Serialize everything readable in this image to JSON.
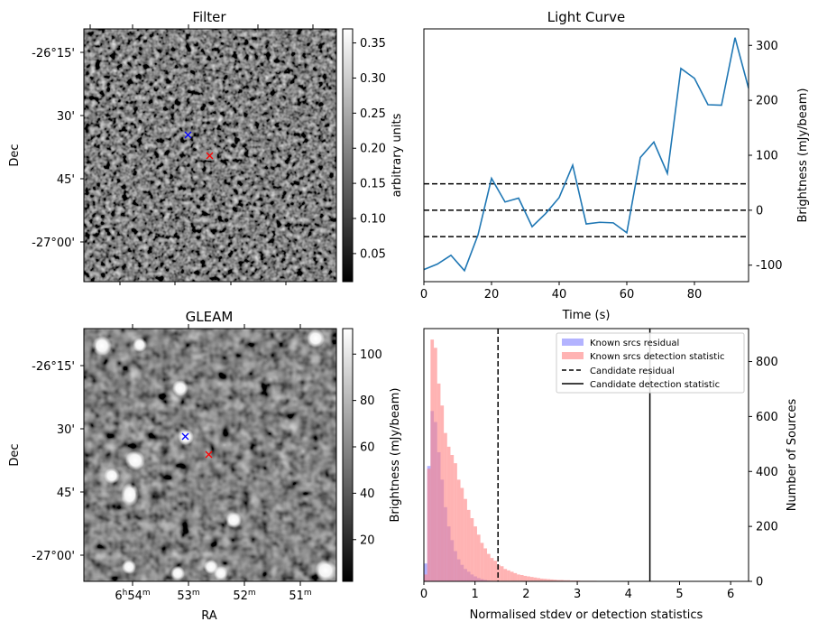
{
  "figure": {
    "filter_panel": {
      "title": "Filter",
      "ylabel": "Dec",
      "yticks": [
        "-26°15'",
        "30'",
        "45'",
        "-27°00'"
      ],
      "colorbar": {
        "label": "arbitrary units",
        "ticks": [
          "0.35",
          "0.30",
          "0.25",
          "0.20",
          "0.15",
          "0.10",
          "0.05"
        ],
        "range": [
          0.01,
          0.37
        ]
      },
      "markers": {
        "blue": "x",
        "red": "x"
      }
    },
    "gleam_panel": {
      "title": "GLEAM",
      "ylabel": "Dec",
      "xlabel": "RA",
      "yticks": [
        "-26°15'",
        "30'",
        "45'",
        "-27°00'"
      ],
      "xticks": [
        {
          "base": "6",
          "h": "h",
          "base2": "54",
          "m": "m"
        },
        {
          "base": "",
          "h": "",
          "base2": "53",
          "m": "m"
        },
        {
          "base": "",
          "h": "",
          "base2": "52",
          "m": "m"
        },
        {
          "base": "",
          "h": "",
          "base2": "51",
          "m": "m"
        }
      ],
      "colorbar": {
        "label": "Brightness (mJy/beam)",
        "ticks": [
          "100",
          "80",
          "60",
          "40",
          "20"
        ],
        "range": [
          2,
          111
        ]
      }
    },
    "colors": {
      "line": "#1f77b4",
      "blue_marker": "#0000ff",
      "red_marker": "#ff0000",
      "known_residual": "#8080ff",
      "known_detection": "#ff8080"
    }
  },
  "chart_data": [
    {
      "type": "line",
      "title": "Light Curve",
      "xlabel": "Time (s)",
      "ylabel": "Brightness (mJy/beam)",
      "xlim": [
        0,
        96
      ],
      "ylim": [
        -130,
        330
      ],
      "xticks": [
        0,
        20,
        40,
        60,
        80
      ],
      "yticks": [
        -100,
        0,
        100,
        200,
        300
      ],
      "x": [
        0,
        4,
        8,
        12,
        16,
        20,
        24,
        28,
        32,
        36,
        40,
        44,
        48,
        52,
        56,
        60,
        64,
        68,
        72,
        76,
        80,
        84,
        88,
        92,
        96
      ],
      "y": [
        -108,
        -98,
        -82,
        -110,
        -45,
        58,
        15,
        22,
        -30,
        -6,
        23,
        82,
        -25,
        -22,
        -23,
        -41,
        96,
        124,
        67,
        258,
        240,
        192,
        191,
        314,
        222
      ],
      "hlines": [
        {
          "y": 48,
          "style": "dashed"
        },
        {
          "y": 0,
          "style": "dashed"
        },
        {
          "y": -48,
          "style": "dashed"
        }
      ]
    },
    {
      "type": "bar",
      "xlabel": "Normalised stdev or detection statistics",
      "ylabel": "Number of Sources",
      "xlim": [
        0,
        6.35
      ],
      "ylim": [
        0,
        920
      ],
      "xticks": [
        0,
        1,
        2,
        3,
        4,
        5,
        6
      ],
      "yticks": [
        0,
        200,
        400,
        600,
        800
      ],
      "bin_width": 0.065,
      "series": [
        {
          "name": "Known srcs residual",
          "start": 0,
          "values": [
            65,
            420,
            620,
            580,
            470,
            370,
            270,
            200,
            150,
            110,
            80,
            60,
            45,
            35,
            25,
            18,
            12,
            8,
            5,
            3,
            2,
            1
          ]
        },
        {
          "name": "Known srcs detection statistic",
          "start": 0,
          "values": [
            25,
            410,
            880,
            850,
            720,
            640,
            540,
            490,
            460,
            430,
            370,
            340,
            300,
            260,
            230,
            200,
            170,
            140,
            120,
            100,
            85,
            75,
            60,
            55,
            45,
            40,
            35,
            30,
            25,
            23,
            20,
            18,
            16,
            14,
            12,
            10,
            9,
            8,
            7,
            6,
            5,
            5,
            4,
            4,
            3,
            3,
            3,
            2,
            2,
            2,
            2,
            2,
            1,
            1,
            1,
            1,
            1,
            1,
            1,
            1,
            1,
            1,
            1,
            1,
            1,
            1,
            1,
            1,
            1,
            1,
            1,
            1,
            1,
            1,
            1,
            1,
            1,
            1,
            1,
            1,
            1,
            1,
            1,
            1,
            1,
            1,
            1,
            1,
            1,
            1,
            1,
            1
          ]
        }
      ],
      "vlines": [
        {
          "name": "Candidate residual",
          "x": 1.45,
          "style": "dashed"
        },
        {
          "name": "Candidate detection statistic",
          "x": 4.42,
          "style": "solid"
        }
      ],
      "legend_position": "top-right"
    }
  ]
}
